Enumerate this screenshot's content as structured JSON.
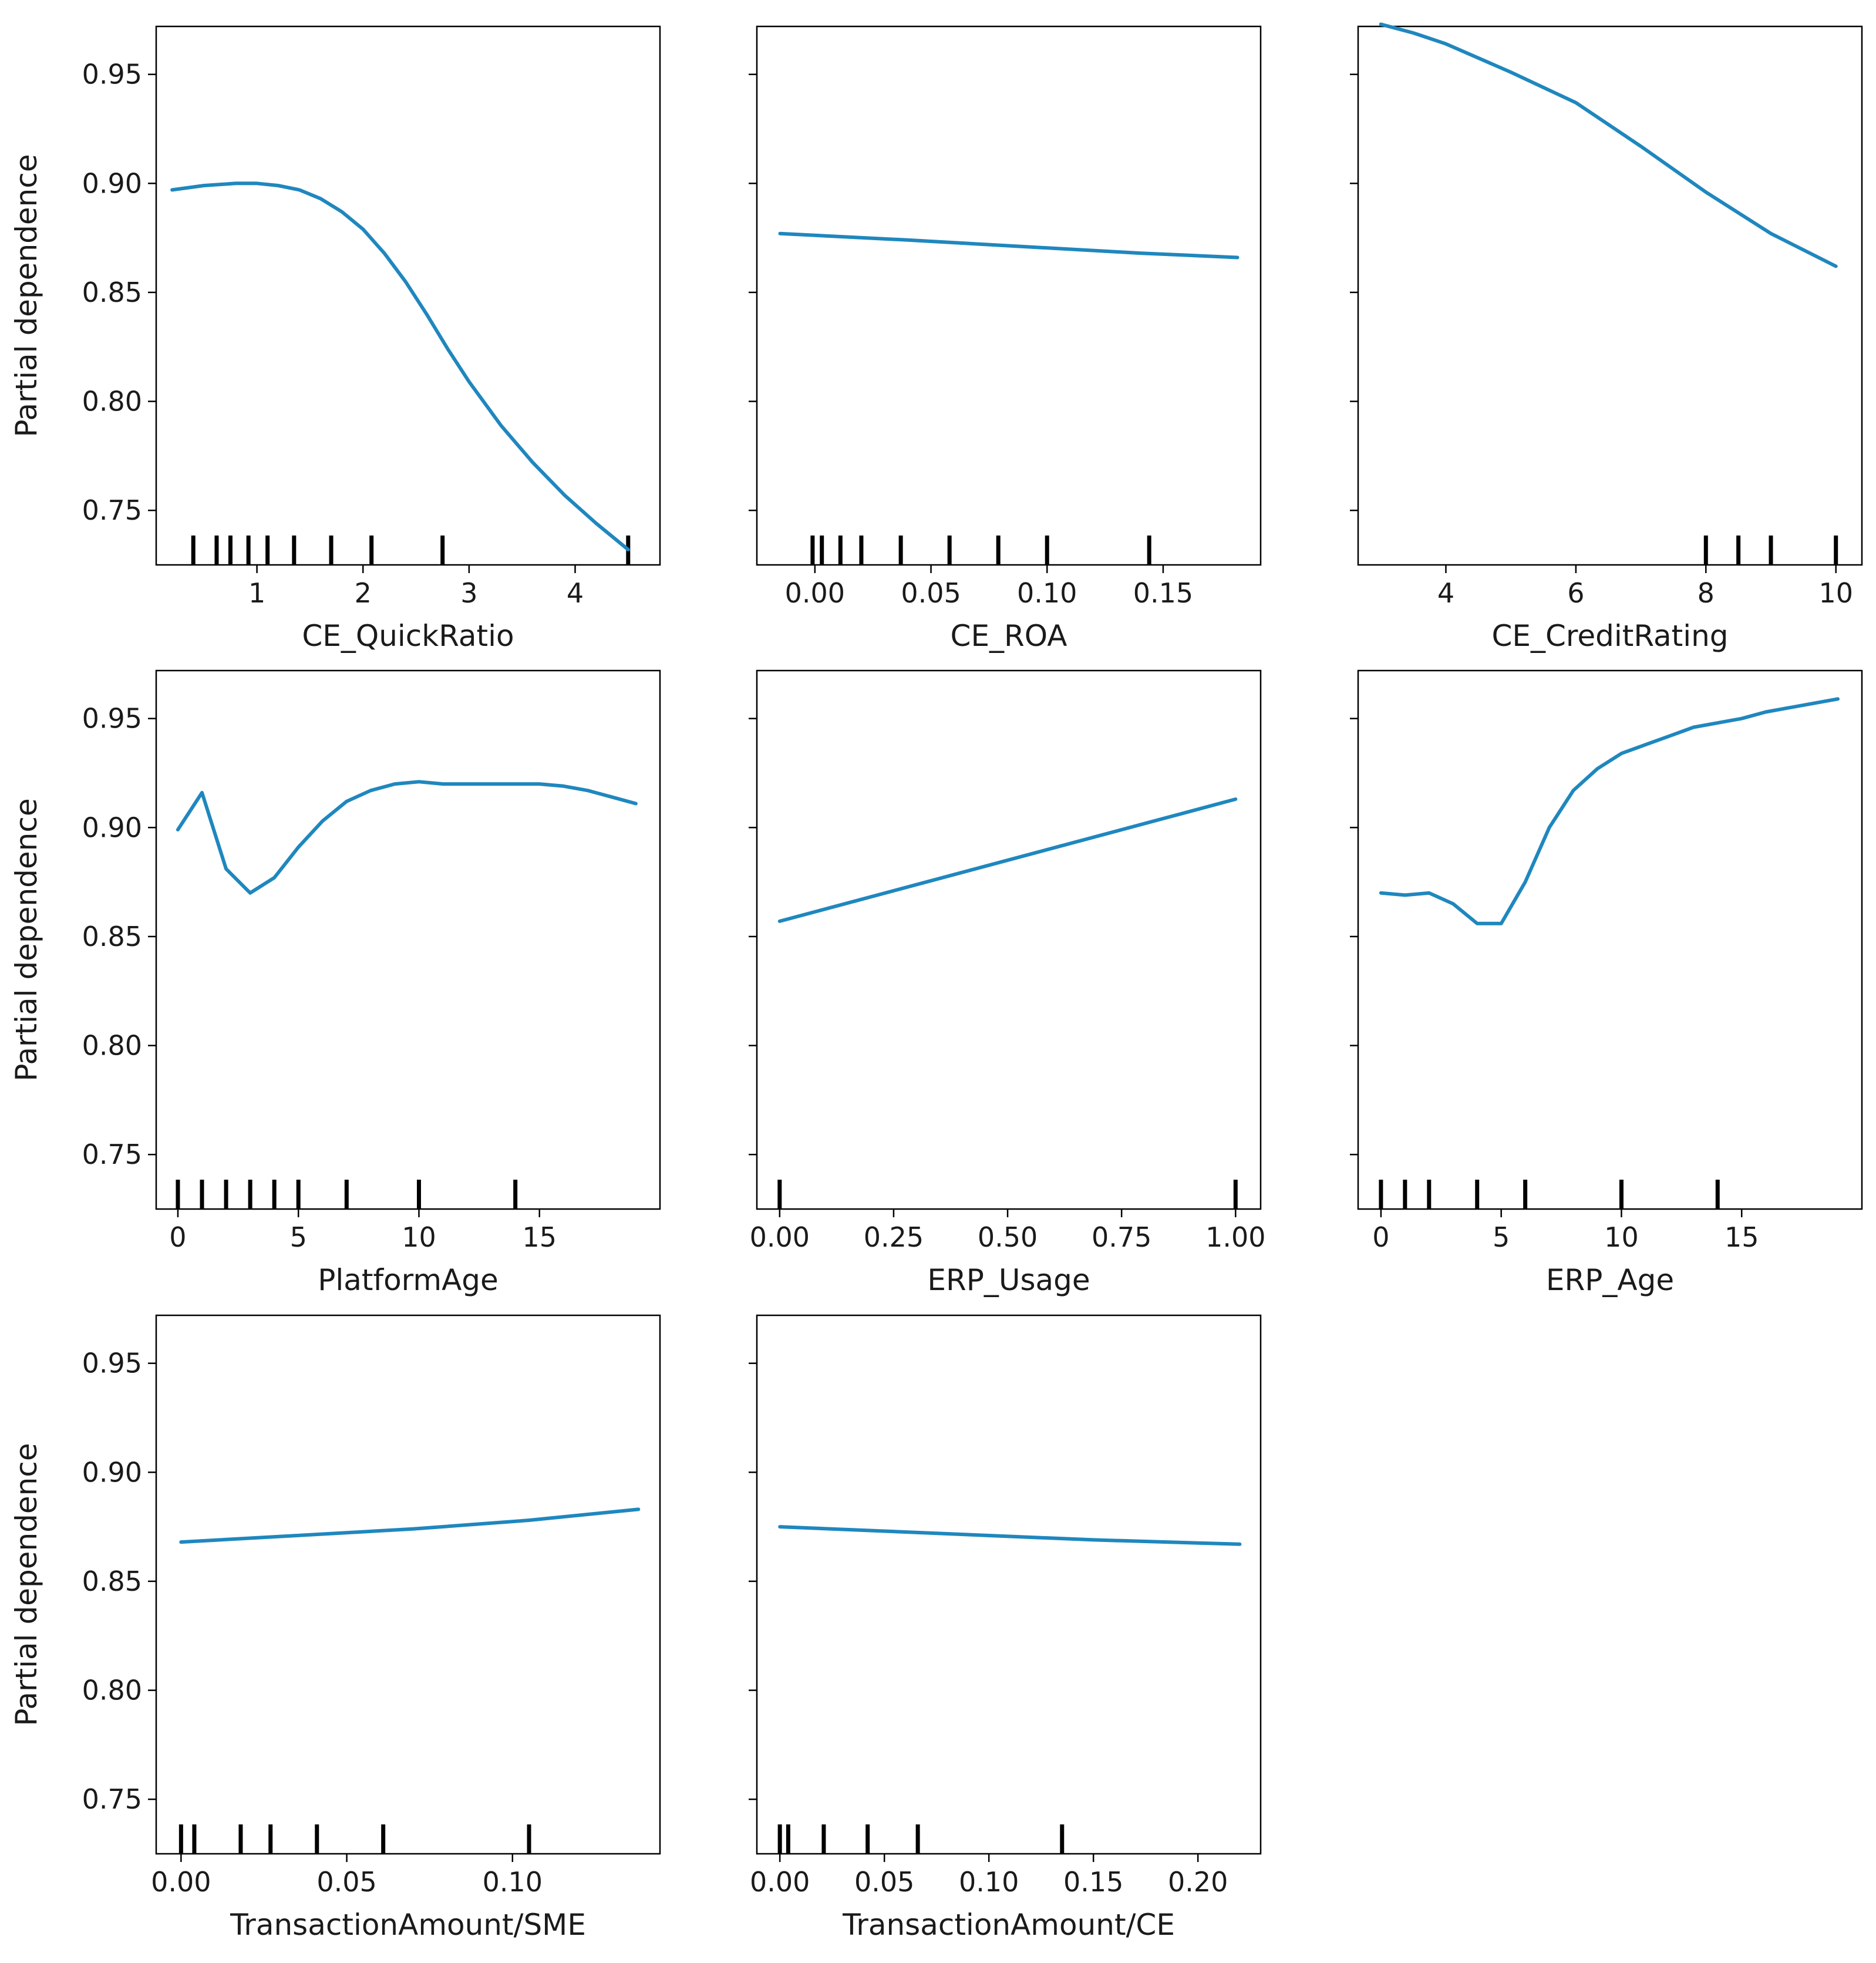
{
  "colors": {
    "line": "#1f87be",
    "axis": "#000000",
    "rug": "#000000",
    "background": "#ffffff"
  },
  "chart_data": [
    {
      "type": "line",
      "xlabel": "CE_QuickRatio",
      "ylabel": "Partial dependence",
      "xlim": [
        0.05,
        4.8
      ],
      "ylim": [
        0.725,
        0.972
      ],
      "xticks": [
        {
          "v": 1,
          "label": "1"
        },
        {
          "v": 2,
          "label": "2"
        },
        {
          "v": 3,
          "label": "3"
        },
        {
          "v": 4,
          "label": "4"
        }
      ],
      "yticks": [
        {
          "v": 0.75,
          "label": "0.75"
        },
        {
          "v": 0.8,
          "label": "0.80"
        },
        {
          "v": 0.85,
          "label": "0.85"
        },
        {
          "v": 0.9,
          "label": "0.90"
        },
        {
          "v": 0.95,
          "label": "0.95"
        }
      ],
      "show_ytick_labels": true,
      "x": [
        0.2,
        0.5,
        0.8,
        1.0,
        1.2,
        1.4,
        1.6,
        1.8,
        2.0,
        2.2,
        2.4,
        2.6,
        2.8,
        3.0,
        3.3,
        3.6,
        3.9,
        4.2,
        4.5
      ],
      "y": [
        0.897,
        0.899,
        0.9,
        0.9,
        0.899,
        0.897,
        0.893,
        0.887,
        0.879,
        0.868,
        0.855,
        0.84,
        0.824,
        0.809,
        0.789,
        0.772,
        0.757,
        0.744,
        0.732
      ],
      "rug": [
        0.4,
        0.62,
        0.75,
        0.92,
        1.1,
        1.35,
        1.7,
        2.08,
        2.75,
        4.5
      ]
    },
    {
      "type": "line",
      "xlabel": "CE_ROA",
      "ylabel": "",
      "xlim": [
        -0.025,
        0.192
      ],
      "ylim": [
        0.725,
        0.972
      ],
      "xticks": [
        {
          "v": 0.0,
          "label": "0.00"
        },
        {
          "v": 0.05,
          "label": "0.05"
        },
        {
          "v": 0.1,
          "label": "0.10"
        },
        {
          "v": 0.15,
          "label": "0.15"
        }
      ],
      "yticks": [
        {
          "v": 0.75,
          "label": "0.75"
        },
        {
          "v": 0.8,
          "label": "0.80"
        },
        {
          "v": 0.85,
          "label": "0.85"
        },
        {
          "v": 0.9,
          "label": "0.90"
        },
        {
          "v": 0.95,
          "label": "0.95"
        }
      ],
      "show_ytick_labels": false,
      "x": [
        -0.015,
        0.04,
        0.09,
        0.14,
        0.182
      ],
      "y": [
        0.877,
        0.874,
        0.871,
        0.868,
        0.866
      ],
      "rug": [
        -0.001,
        0.003,
        0.011,
        0.02,
        0.037,
        0.058,
        0.079,
        0.1,
        0.144
      ]
    },
    {
      "type": "line",
      "xlabel": "CE_CreditRating",
      "ylabel": "",
      "xlim": [
        2.65,
        10.4
      ],
      "ylim": [
        0.725,
        0.972
      ],
      "xticks": [
        {
          "v": 4,
          "label": "4"
        },
        {
          "v": 6,
          "label": "6"
        },
        {
          "v": 8,
          "label": "8"
        },
        {
          "v": 10,
          "label": "10"
        }
      ],
      "yticks": [
        {
          "v": 0.75,
          "label": "0.75"
        },
        {
          "v": 0.8,
          "label": "0.80"
        },
        {
          "v": 0.85,
          "label": "0.85"
        },
        {
          "v": 0.9,
          "label": "0.90"
        },
        {
          "v": 0.95,
          "label": "0.95"
        }
      ],
      "show_ytick_labels": false,
      "x": [
        3.0,
        3.5,
        4.0,
        5.0,
        6.0,
        7.0,
        8.0,
        9.0,
        10.0
      ],
      "y": [
        0.973,
        0.969,
        0.964,
        0.951,
        0.937,
        0.917,
        0.896,
        0.877,
        0.862
      ],
      "rug": [
        8,
        8.5,
        9,
        10
      ]
    },
    {
      "type": "line",
      "xlabel": "PlatformAge",
      "ylabel": "Partial dependence",
      "xlim": [
        -0.9,
        20.0
      ],
      "ylim": [
        0.725,
        0.972
      ],
      "xticks": [
        {
          "v": 0,
          "label": "0"
        },
        {
          "v": 5,
          "label": "5"
        },
        {
          "v": 10,
          "label": "10"
        },
        {
          "v": 15,
          "label": "15"
        }
      ],
      "yticks": [
        {
          "v": 0.75,
          "label": "0.75"
        },
        {
          "v": 0.8,
          "label": "0.80"
        },
        {
          "v": 0.85,
          "label": "0.85"
        },
        {
          "v": 0.9,
          "label": "0.90"
        },
        {
          "v": 0.95,
          "label": "0.95"
        }
      ],
      "show_ytick_labels": true,
      "x": [
        0,
        1,
        2,
        3,
        4,
        5,
        6,
        7,
        8,
        9,
        10,
        11,
        12,
        13,
        14,
        15,
        16,
        17,
        18,
        19
      ],
      "y": [
        0.899,
        0.916,
        0.881,
        0.87,
        0.877,
        0.891,
        0.903,
        0.912,
        0.917,
        0.92,
        0.921,
        0.92,
        0.92,
        0.92,
        0.92,
        0.92,
        0.919,
        0.917,
        0.914,
        0.911
      ],
      "rug": [
        0,
        1,
        2,
        3,
        4,
        5,
        7,
        10,
        14
      ]
    },
    {
      "type": "line",
      "xlabel": "ERP_Usage",
      "ylabel": "",
      "xlim": [
        -0.05,
        1.055
      ],
      "ylim": [
        0.725,
        0.972
      ],
      "xticks": [
        {
          "v": 0.0,
          "label": "0.00"
        },
        {
          "v": 0.25,
          "label": "0.25"
        },
        {
          "v": 0.5,
          "label": "0.50"
        },
        {
          "v": 0.75,
          "label": "0.75"
        },
        {
          "v": 1.0,
          "label": "1.00"
        }
      ],
      "yticks": [
        {
          "v": 0.75,
          "label": "0.75"
        },
        {
          "v": 0.8,
          "label": "0.80"
        },
        {
          "v": 0.85,
          "label": "0.85"
        },
        {
          "v": 0.9,
          "label": "0.90"
        },
        {
          "v": 0.95,
          "label": "0.95"
        }
      ],
      "show_ytick_labels": false,
      "x": [
        0,
        1
      ],
      "y": [
        0.857,
        0.913
      ],
      "rug": [
        0,
        1
      ]
    },
    {
      "type": "line",
      "xlabel": "ERP_Age",
      "ylabel": "",
      "xlim": [
        -0.95,
        20.0
      ],
      "ylim": [
        0.725,
        0.972
      ],
      "xticks": [
        {
          "v": 0,
          "label": "0"
        },
        {
          "v": 5,
          "label": "5"
        },
        {
          "v": 10,
          "label": "10"
        },
        {
          "v": 15,
          "label": "15"
        }
      ],
      "yticks": [
        {
          "v": 0.75,
          "label": "0.75"
        },
        {
          "v": 0.8,
          "label": "0.80"
        },
        {
          "v": 0.85,
          "label": "0.85"
        },
        {
          "v": 0.9,
          "label": "0.90"
        },
        {
          "v": 0.95,
          "label": "0.95"
        }
      ],
      "show_ytick_labels": false,
      "x": [
        0,
        1,
        2,
        3,
        4,
        5,
        6,
        7,
        8,
        9,
        10,
        11,
        12,
        13,
        14,
        15,
        16,
        17,
        18,
        19
      ],
      "y": [
        0.87,
        0.869,
        0.87,
        0.865,
        0.856,
        0.856,
        0.875,
        0.9,
        0.917,
        0.927,
        0.934,
        0.938,
        0.942,
        0.946,
        0.948,
        0.95,
        0.953,
        0.955,
        0.957,
        0.959
      ],
      "rug": [
        0,
        1,
        2,
        4,
        6,
        10,
        14
      ]
    },
    {
      "type": "line",
      "xlabel": "TransactionAmount/SME",
      "ylabel": "Partial dependence",
      "xlim": [
        -0.0075,
        0.1445
      ],
      "ylim": [
        0.725,
        0.972
      ],
      "xticks": [
        {
          "v": 0.0,
          "label": "0.00"
        },
        {
          "v": 0.05,
          "label": "0.05"
        },
        {
          "v": 0.1,
          "label": "0.10"
        }
      ],
      "yticks": [
        {
          "v": 0.75,
          "label": "0.75"
        },
        {
          "v": 0.8,
          "label": "0.80"
        },
        {
          "v": 0.85,
          "label": "0.85"
        },
        {
          "v": 0.9,
          "label": "0.90"
        },
        {
          "v": 0.95,
          "label": "0.95"
        }
      ],
      "show_ytick_labels": true,
      "x": [
        0,
        0.035,
        0.07,
        0.105,
        0.138
      ],
      "y": [
        0.868,
        0.871,
        0.874,
        0.878,
        0.883
      ],
      "rug": [
        0,
        0.004,
        0.018,
        0.027,
        0.041,
        0.061,
        0.105
      ]
    },
    {
      "type": "line",
      "xlabel": "TransactionAmount/CE",
      "ylabel": "",
      "xlim": [
        -0.011,
        0.23
      ],
      "ylim": [
        0.725,
        0.972
      ],
      "xticks": [
        {
          "v": 0.0,
          "label": "0.00"
        },
        {
          "v": 0.05,
          "label": "0.05"
        },
        {
          "v": 0.1,
          "label": "0.10"
        },
        {
          "v": 0.15,
          "label": "0.15"
        },
        {
          "v": 0.2,
          "label": "0.20"
        }
      ],
      "yticks": [
        {
          "v": 0.75,
          "label": "0.75"
        },
        {
          "v": 0.8,
          "label": "0.80"
        },
        {
          "v": 0.85,
          "label": "0.85"
        },
        {
          "v": 0.9,
          "label": "0.90"
        },
        {
          "v": 0.95,
          "label": "0.95"
        }
      ],
      "show_ytick_labels": false,
      "x": [
        0,
        0.05,
        0.1,
        0.15,
        0.22
      ],
      "y": [
        0.875,
        0.873,
        0.871,
        0.869,
        0.867
      ],
      "rug": [
        0,
        0.004,
        0.021,
        0.042,
        0.066,
        0.135
      ]
    }
  ]
}
